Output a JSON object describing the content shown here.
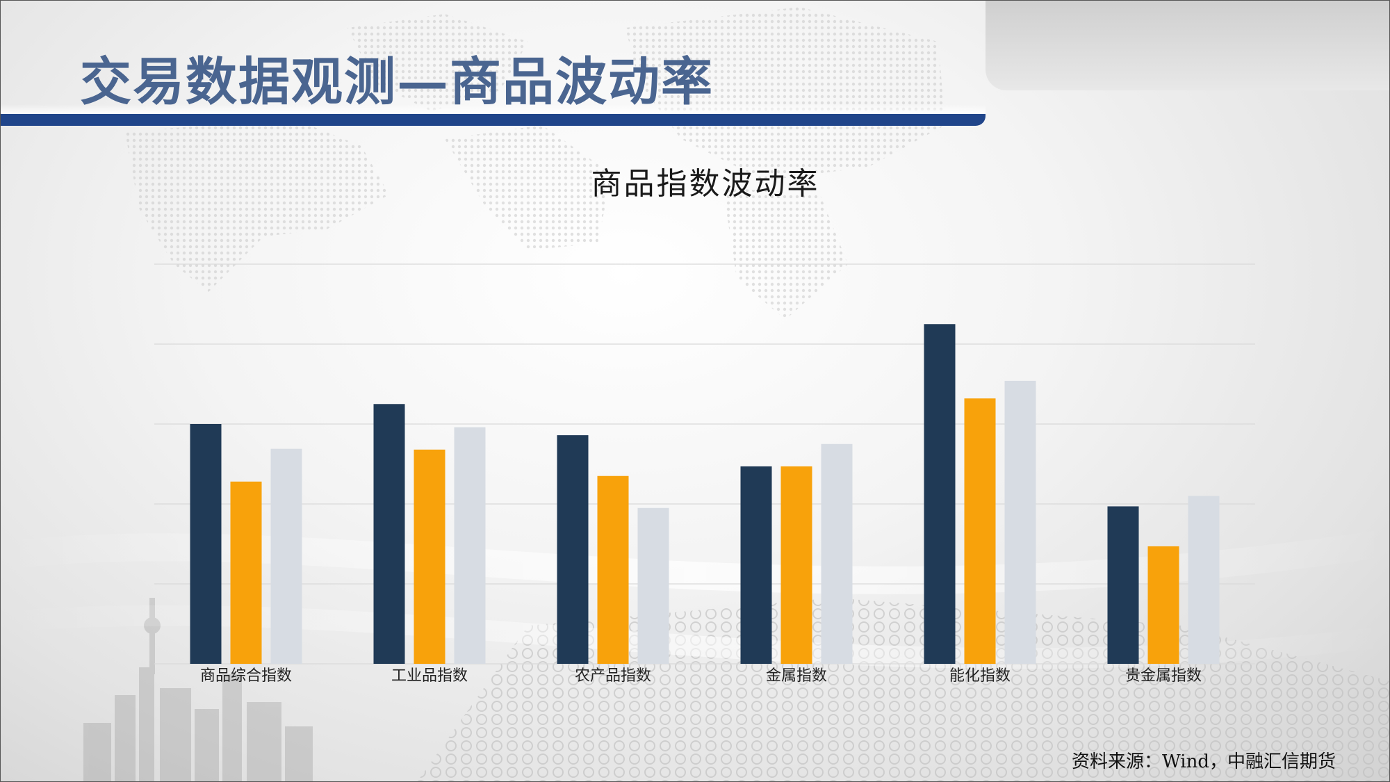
{
  "slide": {
    "title": "交易数据观测—商品波动率",
    "source": "资料来源：Wind，中融汇信期货"
  },
  "colors": {
    "title_text": "#4a6590",
    "title_bar": "#20458a",
    "series_1": "#203a56",
    "series_2": "#f8a20b",
    "series_3": "#d7dce3",
    "gridline": "#d9d9d9"
  },
  "chart_data": {
    "type": "bar",
    "title": "商品指数波动率",
    "xlabel": "",
    "ylabel": "",
    "categories": [
      "商品综合指数",
      "工业品指数",
      "农产品指数",
      "金属指数",
      "能化指数",
      "贵金属指数"
    ],
    "series": [
      {
        "values": [
          0.3,
          0.325,
          0.286,
          0.247,
          0.425,
          0.197
        ]
      },
      {
        "values": [
          0.228,
          0.268,
          0.235,
          0.247,
          0.332,
          0.147
        ]
      },
      {
        "values": [
          0.269,
          0.296,
          0.195,
          0.275,
          0.354,
          0.21
        ]
      }
    ],
    "ylim": [
      0,
      0.5
    ],
    "gridlines": 5,
    "y_axis_labels_shown": false,
    "legend_shown": false,
    "grid": true
  }
}
